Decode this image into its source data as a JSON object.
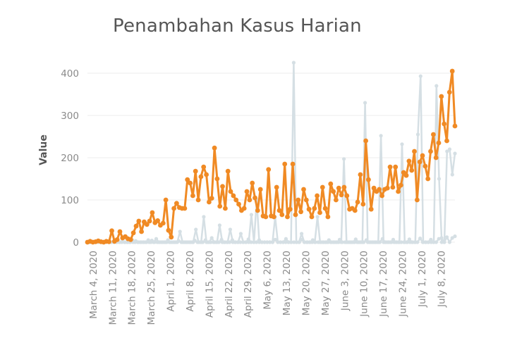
{
  "chart_data": {
    "type": "line",
    "title": "Penambahan Kasus Harian",
    "xlabel": "",
    "ylabel": "Value",
    "ylim": [
      0,
      420
    ],
    "yticks": [
      "0",
      "100",
      "200",
      "300",
      "400"
    ],
    "grid": true,
    "x_start": "March 2, 2020",
    "x_end": "July 13, 2020",
    "xtick_labels": [
      "March 4, 2020",
      "March 11, 2020",
      "March 18, 2020",
      "March 25, 2020",
      "April 1, 2020",
      "April 8, 2020",
      "April 15, 2020",
      "April 22, 2020",
      "April 29, 2020",
      "May 6, 2020",
      "May 13, 2020",
      "May 20, 2020",
      "May 27, 2020",
      "June 3, 2020",
      "June 10, 2020",
      "June 17, 2020",
      "June 24, 2020",
      "July 1, 2020",
      "July 8, 2020"
    ],
    "series": [
      {
        "color": "#f08a24",
        "values": [
          0,
          2,
          0,
          1,
          3,
          1,
          0,
          2,
          1,
          27,
          2,
          6,
          25,
          10,
          13,
          8,
          6,
          22,
          38,
          50,
          25,
          48,
          42,
          50,
          70,
          46,
          51,
          40,
          45,
          100,
          28,
          12,
          80,
          92,
          82,
          80,
          80,
          148,
          140,
          110,
          168,
          100,
          155,
          178,
          160,
          95,
          104,
          223,
          150,
          85,
          132,
          80,
          168,
          120,
          110,
          100,
          90,
          75,
          80,
          120,
          100,
          140,
          105,
          75,
          125,
          62,
          60,
          172,
          62,
          60,
          130,
          75,
          65,
          185,
          60,
          78,
          185,
          65,
          100,
          72,
          125,
          100,
          78,
          60,
          80,
          110,
          70,
          130,
          80,
          60,
          138,
          120,
          100,
          128,
          112,
          130,
          110,
          78,
          80,
          75,
          95,
          160,
          90,
          240,
          148,
          78,
          128,
          120,
          125,
          110,
          125,
          128,
          178,
          130,
          178,
          120,
          135,
          165,
          158,
          192,
          170,
          215,
          100,
          190,
          205,
          180,
          150,
          215,
          255,
          200,
          235,
          345,
          280,
          240,
          355,
          405,
          275
        ]
      },
      {
        "color": "#d5dfe4",
        "values": [
          0,
          0,
          0,
          0,
          0,
          0,
          0,
          0,
          0,
          0,
          0,
          0,
          0,
          0,
          0,
          0,
          0,
          5,
          0,
          0,
          0,
          0,
          0,
          5,
          0,
          0,
          8,
          0,
          0,
          0,
          0,
          0,
          0,
          0,
          0,
          25,
          0,
          0,
          0,
          0,
          0,
          30,
          0,
          0,
          60,
          0,
          0,
          10,
          0,
          0,
          40,
          0,
          0,
          0,
          30,
          0,
          0,
          0,
          20,
          0,
          0,
          0,
          65,
          0,
          100,
          0,
          0,
          0,
          0,
          0,
          0,
          60,
          0,
          0,
          0,
          0,
          0,
          0,
          425,
          0,
          0,
          20,
          0,
          0,
          0,
          0,
          0,
          60,
          0,
          0,
          0,
          0,
          0,
          0,
          0,
          0,
          0,
          197,
          0,
          0,
          0,
          0,
          0,
          0,
          0,
          330,
          0,
          0,
          0,
          0,
          0,
          252,
          0,
          0,
          0,
          0,
          0,
          0,
          0,
          232,
          0,
          0,
          0,
          0,
          0,
          255,
          393,
          0,
          0,
          0,
          0,
          0,
          370,
          150,
          0,
          0,
          215,
          220,
          160,
          210
        ]
      },
      {
        "color": "#d5dfe4",
        "values": [
          0,
          0,
          0,
          0,
          0,
          0,
          0,
          0,
          0,
          0,
          0,
          0,
          0,
          2,
          0,
          0,
          0,
          0,
          3,
          0,
          0,
          0,
          0,
          0,
          4,
          0,
          0,
          0,
          0,
          0,
          5,
          0,
          0,
          0,
          3,
          0,
          0,
          0,
          0,
          0,
          4,
          0,
          0,
          0,
          5,
          0,
          0,
          0,
          0,
          0,
          6,
          0,
          0,
          0,
          5,
          0,
          0,
          0,
          0,
          0,
          7,
          0,
          0,
          0,
          5,
          0,
          0,
          0,
          0,
          0,
          6,
          0,
          0,
          0,
          8,
          0,
          0,
          0,
          0,
          0,
          6,
          0,
          0,
          0,
          5,
          0,
          0,
          0,
          0,
          0,
          5,
          0,
          0,
          0,
          6,
          0,
          0,
          0,
          0,
          0,
          7,
          0,
          0,
          0,
          5,
          0,
          0,
          0,
          0,
          0,
          8,
          0,
          0,
          0,
          6,
          0,
          0,
          0,
          0,
          0,
          7,
          0,
          0,
          0,
          9,
          0,
          0,
          0,
          6,
          0,
          0,
          8,
          10,
          0,
          12,
          0,
          10,
          14
        ]
      }
    ]
  }
}
